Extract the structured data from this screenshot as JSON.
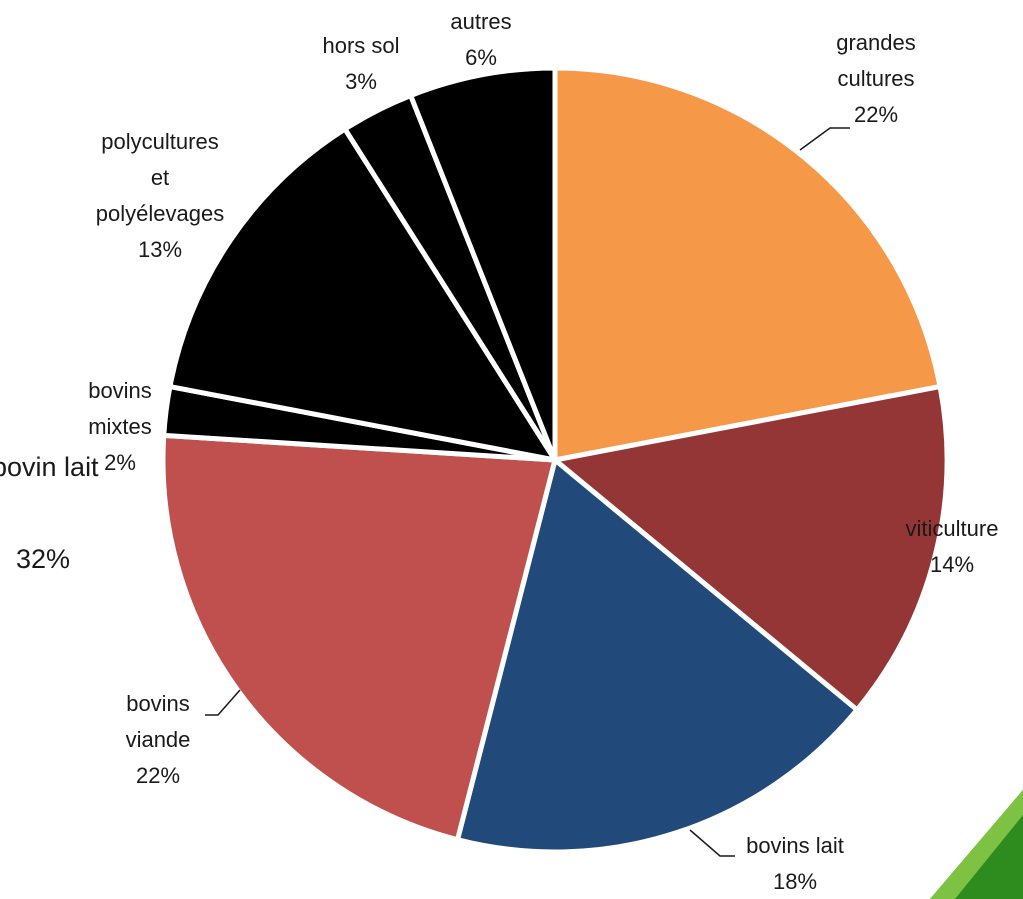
{
  "chart_data": {
    "type": "pie",
    "slices": [
      {
        "name_lines": [
          "grandes",
          "cultures"
        ],
        "value": 22,
        "label": "22%",
        "color": "#F59848"
      },
      {
        "name_lines": [
          "viticulture"
        ],
        "value": 14,
        "label": "14%",
        "color": "#943636"
      },
      {
        "name_lines": [
          "bovins lait"
        ],
        "value": 18,
        "label": "18%",
        "color": "#214A7A"
      },
      {
        "name_lines": [
          "bovins",
          "viande"
        ],
        "value": 22,
        "label": "22%",
        "color": "#C0504E"
      },
      {
        "name_lines": [
          "bovins",
          "mixtes"
        ],
        "value": 2,
        "label": "2%",
        "color": "#000000"
      },
      {
        "name_lines": [
          "polycultures",
          "et",
          "polyélevages"
        ],
        "value": 13,
        "label": "13%",
        "color": "#000000"
      },
      {
        "name_lines": [
          "hors sol"
        ],
        "value": 3,
        "label": "3%",
        "color": "#000000"
      },
      {
        "name_lines": [
          "autres"
        ],
        "value": 6,
        "label": "6%",
        "color": "#000000"
      }
    ],
    "overlay_text": {
      "name": "bovin lait",
      "value": "32%"
    },
    "accent_color": "#2E8B1E"
  }
}
